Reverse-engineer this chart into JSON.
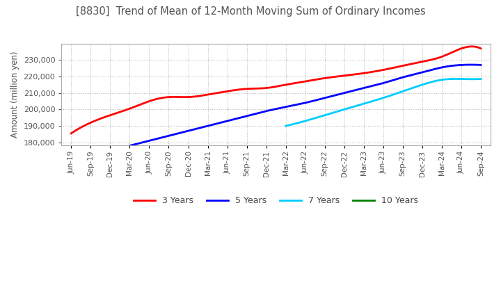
{
  "title": "[8830]  Trend of Mean of 12-Month Moving Sum of Ordinary Incomes",
  "ylabel": "Amount (million yen)",
  "background_color": "#ffffff",
  "grid_color": "#aaaaaa",
  "title_color": "#555555",
  "series": {
    "3 Years": {
      "color": "#ff0000",
      "data": {
        "Jun-19": 185500,
        "Sep-19": 192000,
        "Dec-19": 196500,
        "Mar-20": 200500,
        "Jun-20": 205000,
        "Sep-20": 207500,
        "Dec-20": 207500,
        "Mar-21": 209000,
        "Jun-21": 211000,
        "Sep-21": 212500,
        "Dec-21": 213000,
        "Mar-22": 215000,
        "Jun-22": 217000,
        "Sep-22": 219000,
        "Dec-22": 220500,
        "Mar-23": 222000,
        "Jun-23": 224000,
        "Sep-23": 226500,
        "Dec-23": 229000,
        "Mar-24": 232000,
        "Jun-24": 237000,
        "Sep-24": 237000
      }
    },
    "5 Years": {
      "color": "#0000ff",
      "data": {
        "Mar-20": 178000,
        "Jun-20": 181000,
        "Sep-20": 184000,
        "Dec-20": 187000,
        "Mar-21": 190000,
        "Jun-21": 193000,
        "Sep-21": 196000,
        "Dec-21": 199000,
        "Mar-22": 201500,
        "Jun-22": 204000,
        "Sep-22": 207000,
        "Dec-22": 210000,
        "Mar-23": 213000,
        "Jun-23": 216000,
        "Sep-23": 219500,
        "Dec-23": 222500,
        "Mar-24": 225500,
        "Jun-24": 227000,
        "Sep-24": 227000
      }
    },
    "7 Years": {
      "color": "#00ccff",
      "data": {
        "Mar-22": 190000,
        "Jun-22": 193000,
        "Sep-22": 196500,
        "Dec-22": 200000,
        "Mar-23": 203500,
        "Jun-23": 207000,
        "Sep-23": 211000,
        "Dec-23": 215000,
        "Mar-24": 218000,
        "Jun-24": 218500,
        "Sep-24": 218500
      }
    },
    "10 Years": {
      "color": "#008000",
      "data": {}
    }
  },
  "x_labels": [
    "Jun-19",
    "Sep-19",
    "Dec-19",
    "Mar-20",
    "Jun-20",
    "Sep-20",
    "Dec-20",
    "Mar-21",
    "Jun-21",
    "Sep-21",
    "Dec-21",
    "Mar-22",
    "Jun-22",
    "Sep-22",
    "Dec-22",
    "Mar-23",
    "Jun-23",
    "Sep-23",
    "Dec-23",
    "Mar-24",
    "Jun-24",
    "Sep-24"
  ],
  "ylim": [
    178000,
    240000
  ],
  "yticks": [
    180000,
    190000,
    200000,
    210000,
    220000,
    230000
  ],
  "legend_ncol": 4
}
